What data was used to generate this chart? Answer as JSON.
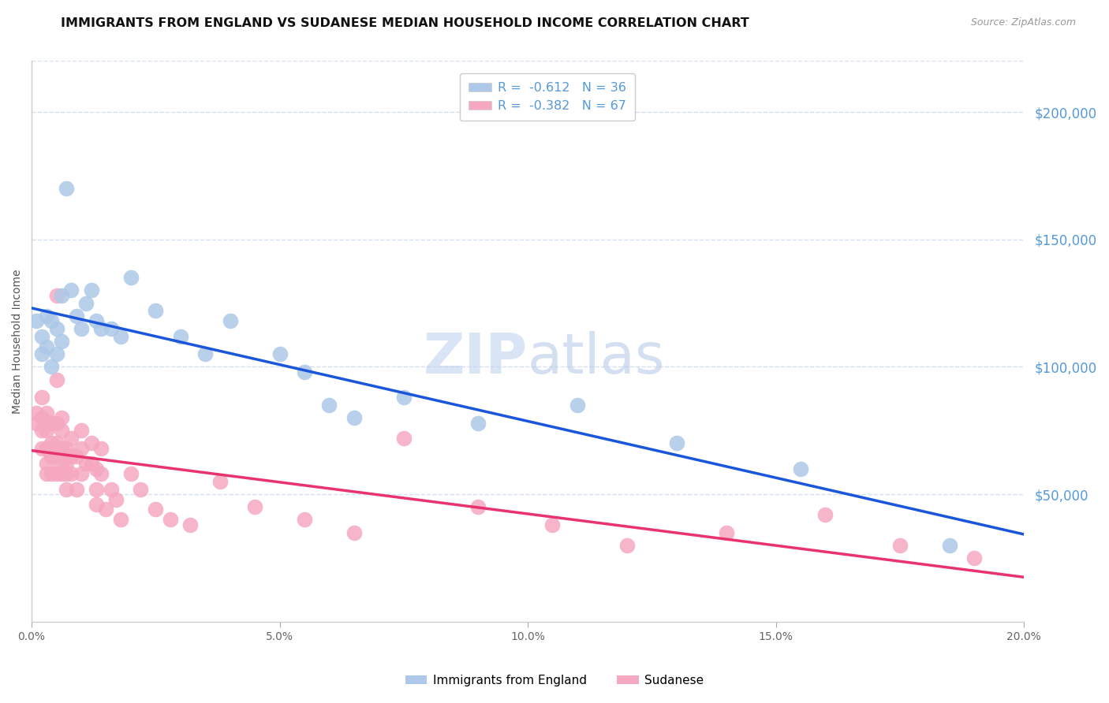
{
  "title": "IMMIGRANTS FROM ENGLAND VS SUDANESE MEDIAN HOUSEHOLD INCOME CORRELATION CHART",
  "source": "Source: ZipAtlas.com",
  "ylabel": "Median Household Income",
  "right_ytick_labels": [
    "$200,000",
    "$150,000",
    "$100,000",
    "$50,000"
  ],
  "right_ytick_values": [
    200000,
    150000,
    100000,
    50000
  ],
  "ylim": [
    0,
    220000
  ],
  "xlim": [
    0.0,
    0.2
  ],
  "watermark_part1": "ZIP",
  "watermark_part2": "atlas",
  "legend": [
    {
      "label": "R =  -0.612   N = 36",
      "color": "#adc8e8"
    },
    {
      "label": "R =  -0.382   N = 67",
      "color": "#f5a8c0"
    }
  ],
  "legend_bottom": [
    {
      "label": "Immigrants from England",
      "color": "#adc8e8"
    },
    {
      "label": "Sudanese",
      "color": "#f5a8c0"
    }
  ],
  "england_x": [
    0.001,
    0.002,
    0.002,
    0.003,
    0.003,
    0.004,
    0.004,
    0.005,
    0.005,
    0.006,
    0.006,
    0.007,
    0.008,
    0.009,
    0.01,
    0.011,
    0.012,
    0.013,
    0.014,
    0.016,
    0.018,
    0.02,
    0.025,
    0.03,
    0.035,
    0.04,
    0.05,
    0.055,
    0.06,
    0.065,
    0.075,
    0.09,
    0.11,
    0.13,
    0.155,
    0.185
  ],
  "england_y": [
    118000,
    112000,
    105000,
    120000,
    108000,
    100000,
    118000,
    115000,
    105000,
    128000,
    110000,
    170000,
    130000,
    120000,
    115000,
    125000,
    130000,
    118000,
    115000,
    115000,
    112000,
    135000,
    122000,
    112000,
    105000,
    118000,
    105000,
    98000,
    85000,
    80000,
    88000,
    78000,
    85000,
    70000,
    60000,
    30000
  ],
  "sudanese_x": [
    0.001,
    0.001,
    0.002,
    0.002,
    0.002,
    0.002,
    0.003,
    0.003,
    0.003,
    0.003,
    0.003,
    0.004,
    0.004,
    0.004,
    0.004,
    0.005,
    0.005,
    0.005,
    0.005,
    0.005,
    0.005,
    0.006,
    0.006,
    0.006,
    0.006,
    0.006,
    0.007,
    0.007,
    0.007,
    0.007,
    0.008,
    0.008,
    0.008,
    0.009,
    0.009,
    0.01,
    0.01,
    0.01,
    0.011,
    0.012,
    0.012,
    0.013,
    0.013,
    0.013,
    0.014,
    0.014,
    0.015,
    0.016,
    0.017,
    0.018,
    0.02,
    0.022,
    0.025,
    0.028,
    0.032,
    0.038,
    0.045,
    0.055,
    0.065,
    0.075,
    0.09,
    0.105,
    0.12,
    0.14,
    0.16,
    0.175,
    0.19
  ],
  "sudanese_y": [
    82000,
    78000,
    88000,
    80000,
    75000,
    68000,
    82000,
    75000,
    68000,
    62000,
    58000,
    78000,
    70000,
    65000,
    58000,
    128000,
    95000,
    78000,
    70000,
    65000,
    58000,
    80000,
    75000,
    68000,
    62000,
    58000,
    68000,
    62000,
    58000,
    52000,
    72000,
    65000,
    58000,
    65000,
    52000,
    75000,
    68000,
    58000,
    62000,
    70000,
    62000,
    60000,
    52000,
    46000,
    68000,
    58000,
    44000,
    52000,
    48000,
    40000,
    58000,
    52000,
    44000,
    40000,
    38000,
    55000,
    45000,
    40000,
    35000,
    72000,
    45000,
    38000,
    30000,
    35000,
    42000,
    30000,
    25000
  ],
  "england_line_color": "#1a56db",
  "sudanese_line_color": "#e8336e",
  "england_dot_color": "#adc8e8",
  "sudanese_dot_color": "#f5a8c0",
  "title_fontsize": 11.5,
  "source_fontsize": 9,
  "ylabel_fontsize": 10,
  "watermark_color1": "#c0d4ef",
  "watermark_color2": "#b8cce8",
  "watermark_fontsize": 52,
  "right_axis_color": "#5599dd",
  "grid_color": "#d4dff0",
  "background_color": "#ffffff",
  "xticks": [
    0.0,
    0.05,
    0.1,
    0.15,
    0.2
  ],
  "xtick_labels": [
    "0.0%",
    "5.0%",
    "10.0%",
    "15.0%",
    "20.0%"
  ]
}
